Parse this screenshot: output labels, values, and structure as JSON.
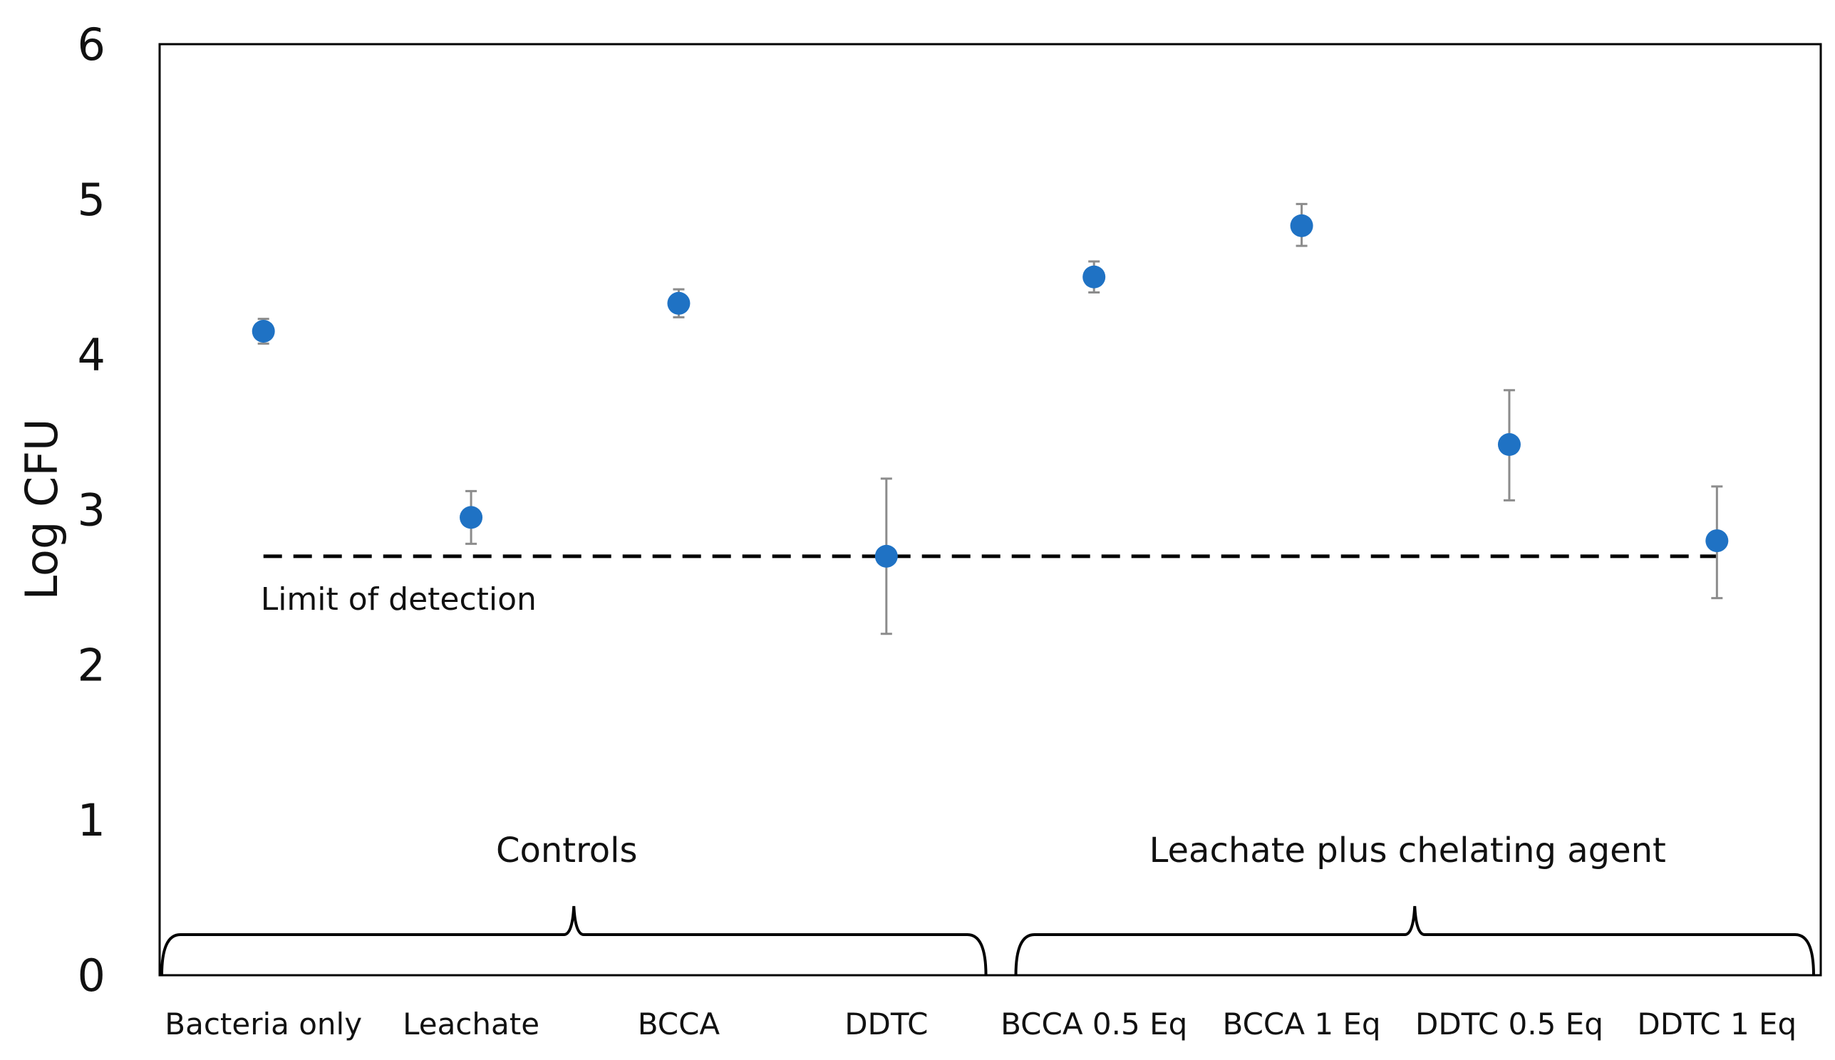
{
  "chart_data": {
    "type": "scatter",
    "title": "",
    "xlabel": "",
    "ylabel": "Log CFU",
    "ylim": [
      0,
      6
    ],
    "yticks": [
      "0",
      "1",
      "2",
      "3",
      "4",
      "5",
      "6"
    ],
    "grid": false,
    "categories": [
      "Bacteria only",
      "Leachate",
      "BCCA",
      "DDTC",
      "BCCA 0.5 Eq",
      "BCCA 1 Eq",
      "DDTC 0.5 Eq",
      "DDTC 1 Eq"
    ],
    "series": [
      {
        "name": "Log CFU",
        "values": [
          4.15,
          2.95,
          4.33,
          2.7,
          4.5,
          4.83,
          3.42,
          2.8
        ],
        "err_low": [
          4.07,
          2.78,
          4.24,
          2.2,
          4.4,
          4.7,
          3.06,
          2.43
        ],
        "err_high": [
          4.23,
          3.12,
          4.42,
          3.2,
          4.6,
          4.97,
          3.77,
          3.15
        ]
      }
    ],
    "colors": {
      "marker": "#1f72c4",
      "errorbar": "#8c8c8c",
      "axes": "#000000"
    },
    "reference_line": {
      "value": 2.7,
      "label": "Limit of detection",
      "from_index": 0,
      "to_index": 7
    },
    "groups": [
      {
        "label": "Controls",
        "from_index": 0,
        "to_index": 3
      },
      {
        "label": "Leachate plus chelating agent",
        "from_index": 4,
        "to_index": 7
      }
    ]
  }
}
